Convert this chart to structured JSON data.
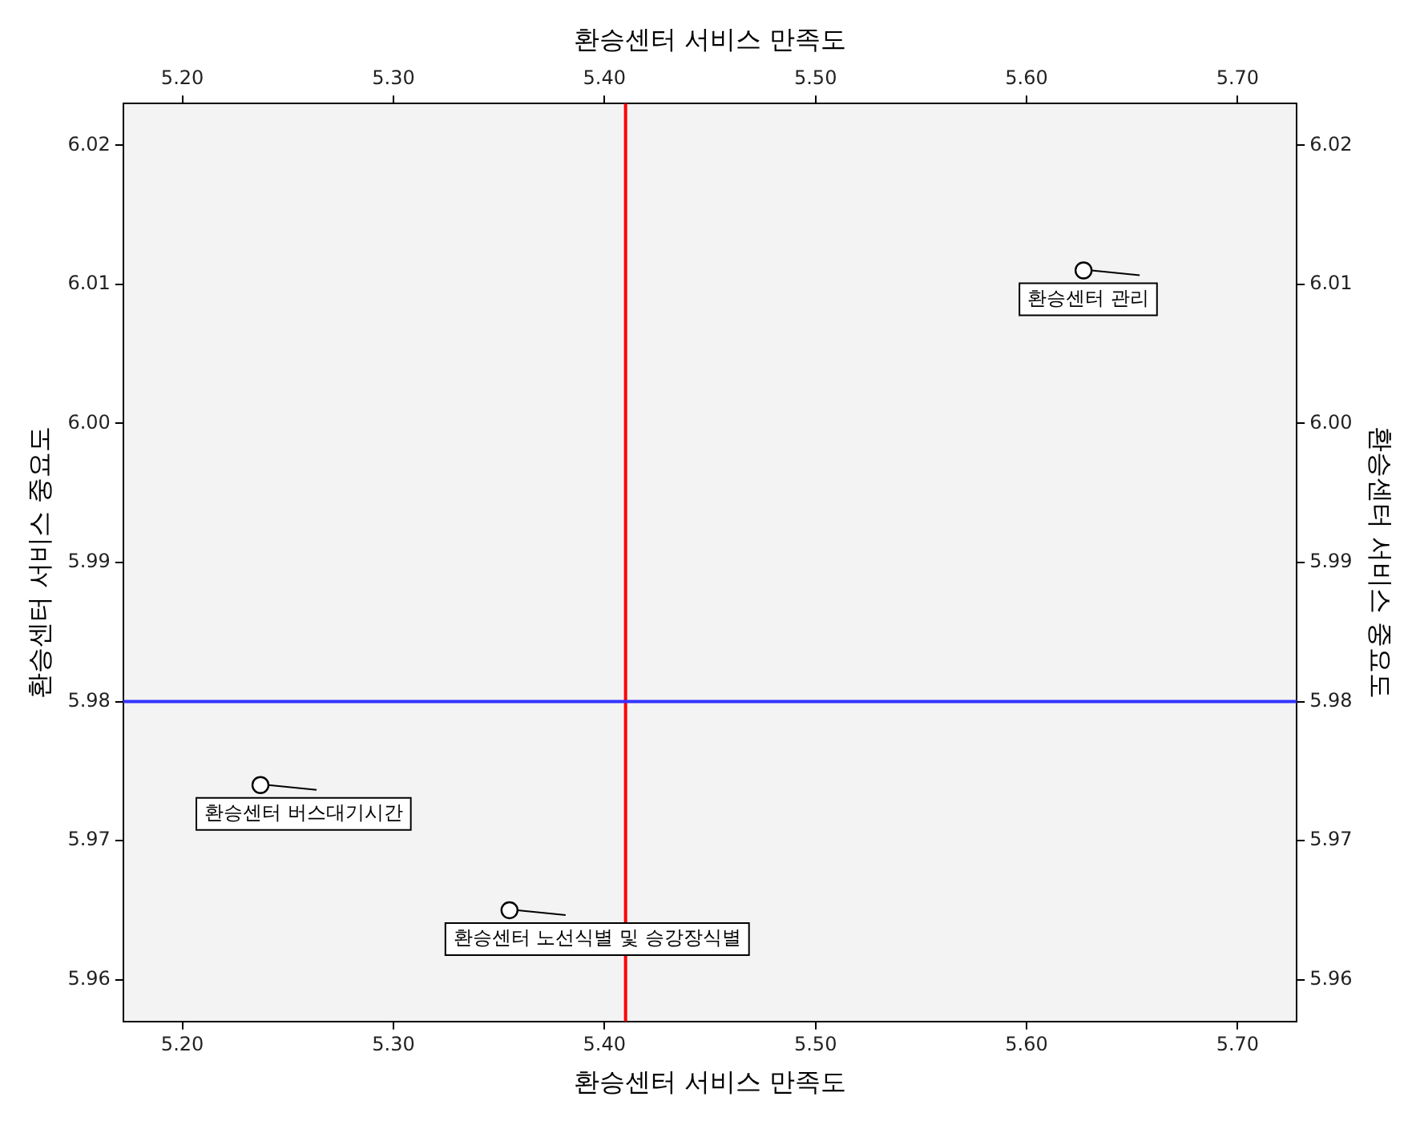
{
  "chart_data": {
    "type": "scatter",
    "xlabel": "환승센터 서비스 만족도",
    "x2label": "환승센터 서비스 만족도",
    "ylabel": "환승센터 서비스 중요도",
    "y2label": "환승센터 서비스 중요도",
    "x": [
      5.627,
      5.237,
      5.355
    ],
    "series": [
      {
        "color": "#000000",
        "values": [
          6.011,
          5.974,
          5.965
        ]
      }
    ],
    "xlim": [
      5.172,
      5.728
    ],
    "xticks": [
      {
        "value": 5.2,
        "label": "5.20"
      },
      {
        "value": 5.3,
        "label": "5.30"
      },
      {
        "value": 5.4,
        "label": "5.40"
      },
      {
        "value": 5.5,
        "label": "5.50"
      },
      {
        "value": 5.6,
        "label": "5.60"
      },
      {
        "value": 5.7,
        "label": "5.70"
      }
    ],
    "x2lim": [
      5.172,
      5.728
    ],
    "x2ticks": [
      {
        "value": 5.2,
        "label": "5.20"
      },
      {
        "value": 5.3,
        "label": "5.30"
      },
      {
        "value": 5.4,
        "label": "5.40"
      },
      {
        "value": 5.5,
        "label": "5.50"
      },
      {
        "value": 5.6,
        "label": "5.60"
      },
      {
        "value": 5.7,
        "label": "5.70"
      }
    ],
    "ylim": [
      5.957,
      6.023
    ],
    "yticks": [
      5.96,
      5.97,
      5.98,
      5.99,
      {
        "value": 6.0,
        "label": "6.00"
      },
      6.01,
      6.02
    ],
    "y2lim": [
      5.957,
      6.023
    ],
    "y2ticks": [
      5.96,
      5.97,
      5.98,
      5.99,
      {
        "value": 6.0,
        "label": "6.00"
      },
      6.01,
      6.02
    ],
    "ref_lines": [
      {
        "axis": "x",
        "value": 5.41,
        "color": "#ff0000"
      },
      {
        "axis": "y",
        "value": 5.98,
        "color": "#3333ff"
      }
    ],
    "annotations": [
      {
        "text": "환승센터 관리",
        "x": 5.627,
        "y": 6.011
      },
      {
        "text": "환승센터 버스대기시간",
        "x": 5.237,
        "y": 5.974
      },
      {
        "text": "환승센터 노선식별 및 승강장식별",
        "x": 5.355,
        "y": 5.965
      }
    ],
    "marker": "circle",
    "legend": false
  }
}
